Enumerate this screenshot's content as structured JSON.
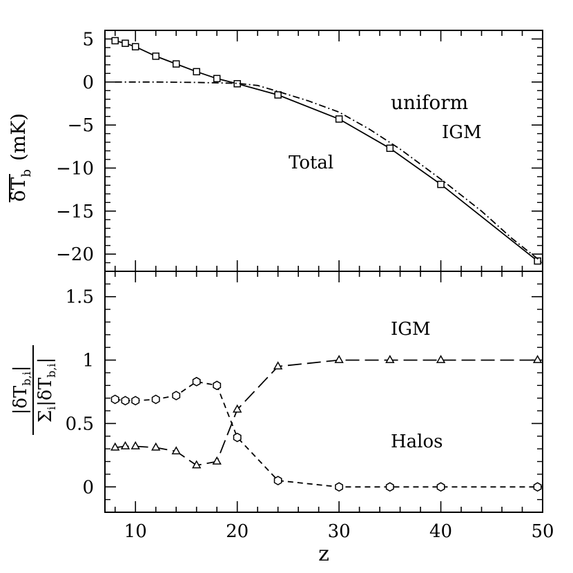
{
  "chart_data": [
    {
      "type": "line",
      "panel": "top",
      "ylabel_main": "δT",
      "ylabel_sub": "b",
      "ylabel_unit": "(mK)",
      "xlim": [
        7,
        50
      ],
      "ylim": [
        -22,
        6
      ],
      "yticks": [
        5,
        0,
        -5,
        -10,
        -15,
        -20
      ],
      "ytick_labels": [
        "5",
        "0",
        "−5",
        "−10",
        "−15",
        "−20"
      ],
      "annotations": [
        "uniform",
        "IGM",
        "Total"
      ],
      "series": [
        {
          "style": "solid-square",
          "x": [
            8,
            9,
            10,
            12,
            14,
            16,
            18,
            20,
            24,
            30,
            35,
            40,
            49.5
          ],
          "values": [
            4.8,
            4.5,
            4.1,
            3.0,
            2.1,
            1.2,
            0.4,
            -0.2,
            -1.5,
            -4.3,
            -7.7,
            -11.9,
            -20.8
          ]
        },
        {
          "style": "dash-dot",
          "x": [
            8,
            12,
            16,
            20,
            22,
            24,
            27,
            30,
            33,
            36,
            40,
            44,
            47,
            50
          ],
          "values": [
            0,
            0,
            -0.05,
            -0.15,
            -0.4,
            -1.1,
            -2.2,
            -3.5,
            -5.5,
            -7.8,
            -11.3,
            -15.0,
            -18.2,
            -21.0
          ]
        }
      ]
    },
    {
      "type": "line",
      "panel": "bottom",
      "xlabel": "z",
      "xlim": [
        7,
        50
      ],
      "xticks": [
        10,
        20,
        30,
        40,
        50
      ],
      "ylim": [
        -0.2,
        1.7
      ],
      "yticks": [
        1.5,
        1,
        0.5,
        0
      ],
      "ytick_labels": [
        "1.5",
        "1",
        "0.5",
        "0"
      ],
      "ylabel_num": "|δT",
      "ylabel_den": "Σ",
      "ylabel_sub": "b,i",
      "ylabel_i": "i",
      "annotations": [
        "IGM",
        "Halos"
      ],
      "series": [
        {
          "style": "long-dash-triangle",
          "x": [
            8,
            9,
            10,
            12,
            14,
            16,
            18,
            20,
            24,
            30,
            35,
            40,
            49.5
          ],
          "values": [
            0.31,
            0.32,
            0.32,
            0.31,
            0.28,
            0.17,
            0.2,
            0.61,
            0.95,
            1.0,
            1.0,
            1.0,
            1.0
          ]
        },
        {
          "style": "short-dash-hexagon",
          "x": [
            8,
            9,
            10,
            12,
            14,
            16,
            18,
            20,
            24,
            30,
            35,
            40,
            49.5
          ],
          "values": [
            0.69,
            0.68,
            0.68,
            0.69,
            0.72,
            0.83,
            0.8,
            0.39,
            0.05,
            0.0,
            0.0,
            0.0,
            0.0
          ]
        }
      ]
    }
  ]
}
